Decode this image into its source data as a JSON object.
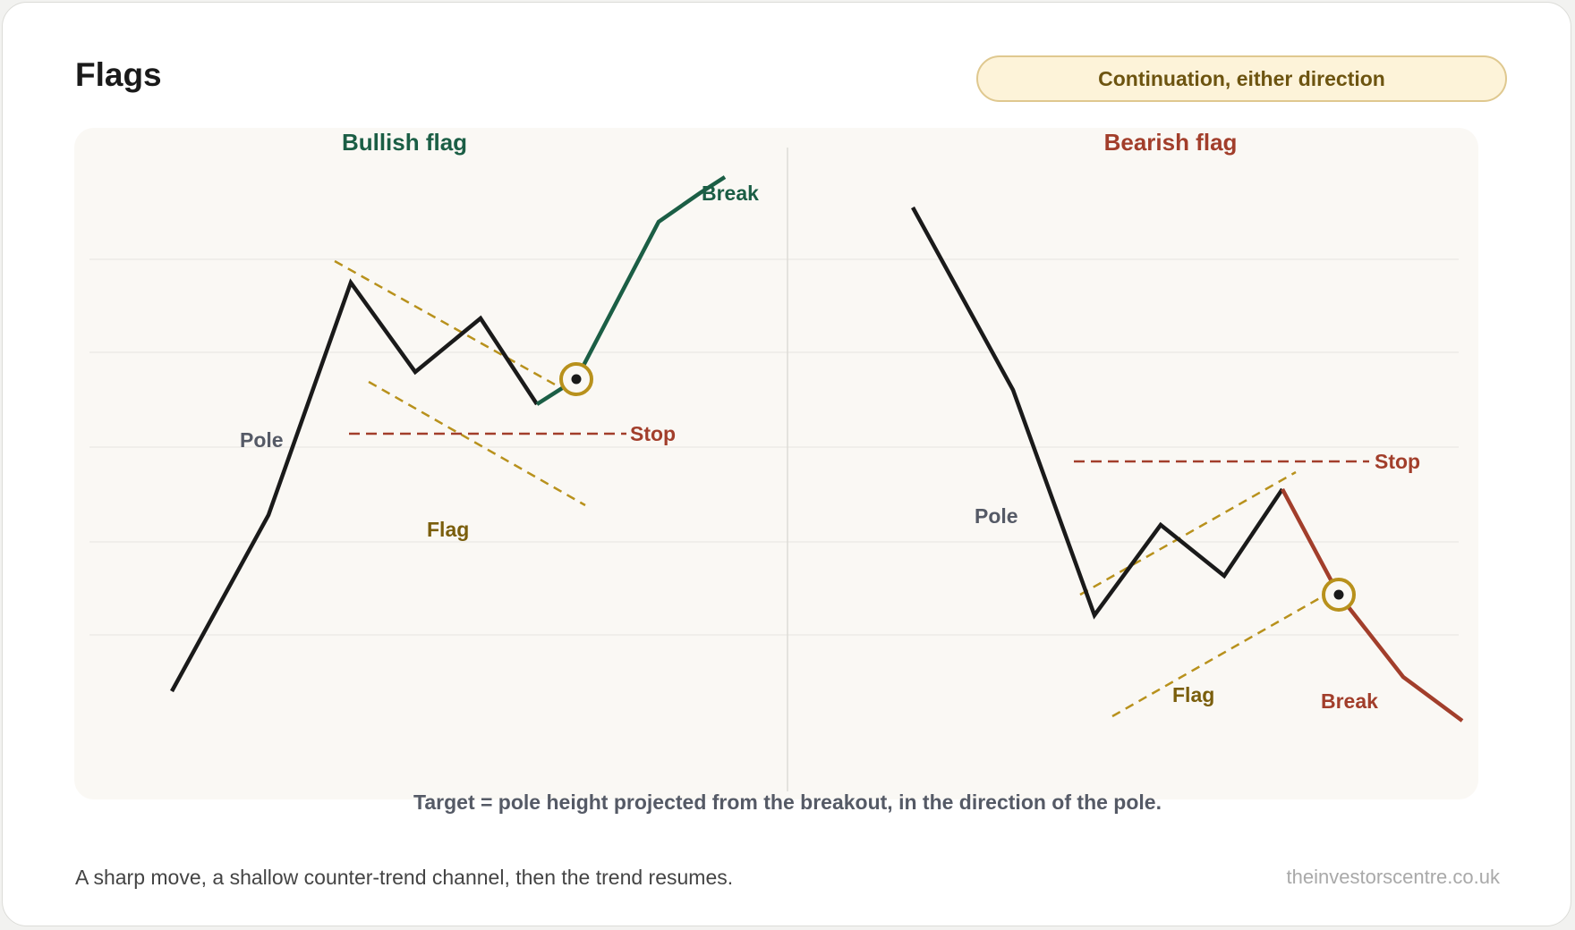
{
  "header": {
    "title": "Flags",
    "badge": "Continuation, either direction"
  },
  "panels": {
    "bullish": {
      "title": "Bullish flag",
      "pole_label": "Pole",
      "flag_label": "Flag",
      "stop_label": "Stop",
      "break_label": "Break"
    },
    "bearish": {
      "title": "Bearish flag",
      "pole_label": "Pole",
      "flag_label": "Flag",
      "stop_label": "Stop",
      "break_label": "Break"
    }
  },
  "caption": "Target = pole height projected from the breakout, in the direction of the pole.",
  "footer": {
    "note": "A sharp move, a shallow counter-trend channel, then the trend resumes.",
    "source": "theinvestorscentre.co.uk"
  },
  "colors": {
    "price": "#1a1a1a",
    "bull": "#1b5e45",
    "bear": "#a23e2b",
    "channel": "#b8911c",
    "stop": "#a23e2b",
    "label_muted": "#555a66",
    "flag_label": "#7a5e0c"
  }
}
